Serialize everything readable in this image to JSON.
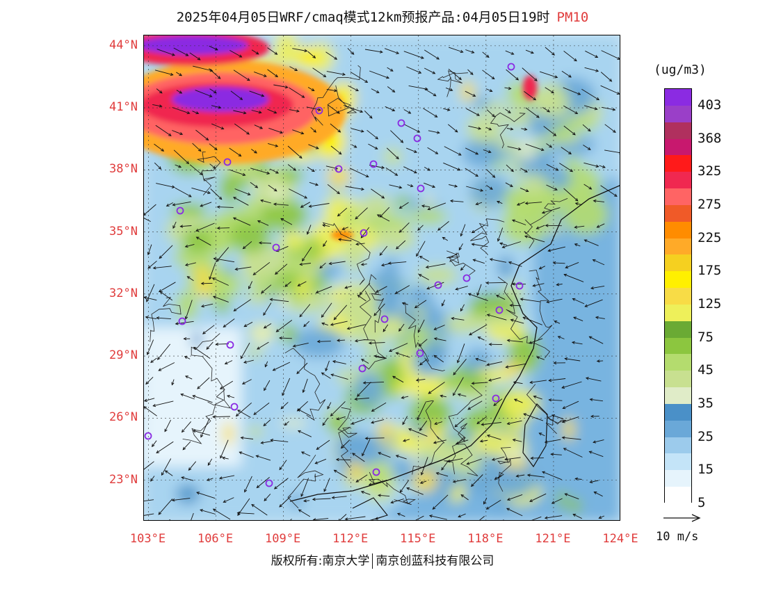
{
  "title": {
    "main": "2025年04月05日WRF/cmaq模式12km预报产品:04月05日19时",
    "pollutant": "PM10",
    "pollutant_color": "#e03c3c"
  },
  "map": {
    "latitude_labels": [
      "44°N",
      "41°N",
      "38°N",
      "35°N",
      "32°N",
      "29°N",
      "26°N",
      "23°N"
    ],
    "longitude_labels": [
      "103°E",
      "106°E",
      "109°E",
      "112°E",
      "115°E",
      "118°E",
      "121°E",
      "124°E"
    ],
    "lat_range": [
      21,
      44.5
    ],
    "lon_range": [
      102.8,
      124
    ],
    "label_color": "#e03c3c",
    "station_marker_color": "#8a2be2"
  },
  "colorbar": {
    "units": "(ug/m3)",
    "labels": [
      "403",
      "368",
      "325",
      "275",
      "225",
      "175",
      "125",
      "75",
      "45",
      "35",
      "25",
      "15",
      "5"
    ],
    "colors": [
      "#8b2be2",
      "#9a3fc8",
      "#b0305e",
      "#c8186e",
      "#ff1a1a",
      "#f02850",
      "#ff6464",
      "#f05a28",
      "#ff8c00",
      "#ffaa28",
      "#f5d020",
      "#fff000",
      "#f8dc46",
      "#eef05a",
      "#6aaa34",
      "#8cc63f",
      "#b4dc6e",
      "#c8e090",
      "#e0ecc8",
      "#4a90c8",
      "#6aa8d8",
      "#9ccbec",
      "#c4e4f8",
      "#e6f4fc",
      "#ffffff"
    ]
  },
  "wind": {
    "reference_label": "10 m/s"
  },
  "footer": {
    "left": "版权所有:南京大学",
    "right": "南京创蓝科技有限公司"
  }
}
